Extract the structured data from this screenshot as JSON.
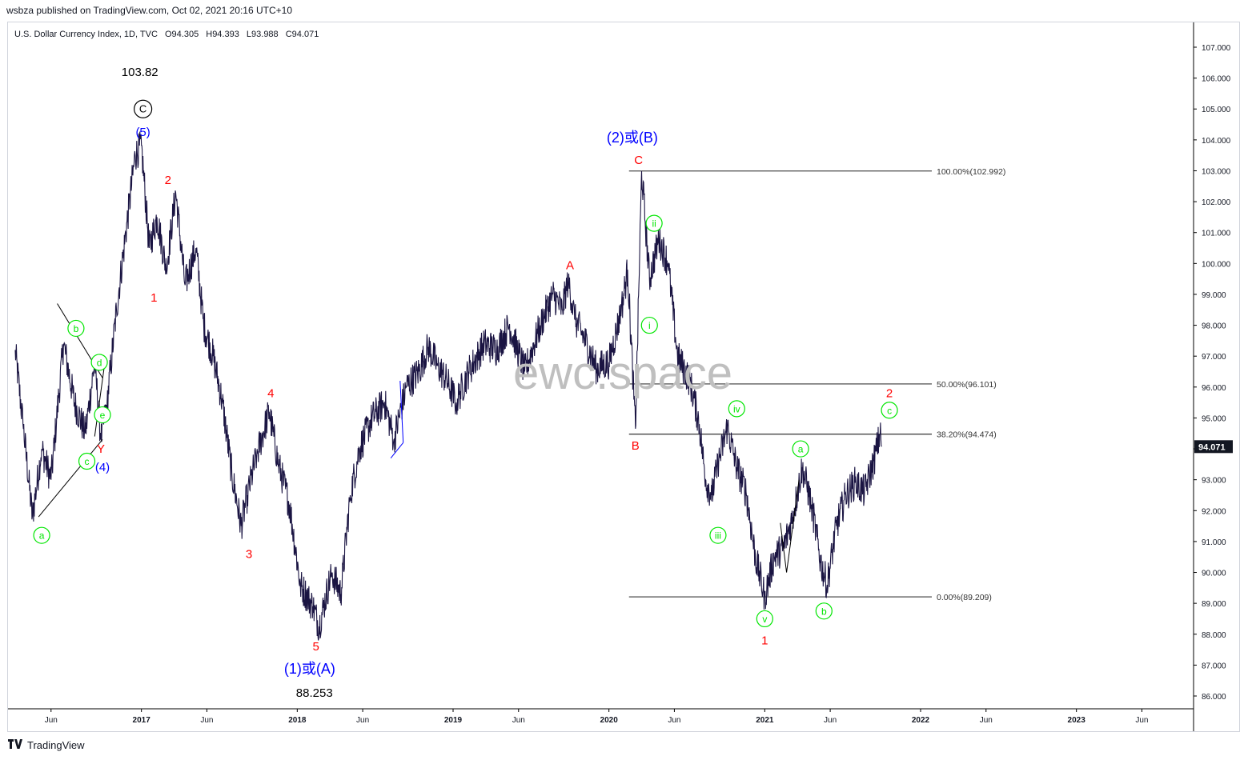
{
  "publisher_line": "wsbza published on TradingView.com, Oct 02, 2021 20:16 UTC+10",
  "footer": {
    "logo_icon": "tradingview-logo-icon",
    "brand": "TradingView"
  },
  "watermark": "ewc.space",
  "colors": {
    "price": "#1a1442",
    "wave_red": "#ff0000",
    "wave_blue": "#0000ff",
    "wave_green": "#00e600",
    "fib_line": "#000000",
    "watermark": "#bfbfbf"
  },
  "chart_data": {
    "type": "line",
    "title": "U.S. Dollar Currency Index, 1D, TVC",
    "ohlc": {
      "open": "O94.305",
      "high": "H94.393",
      "low": "L93.988",
      "close": "C94.071"
    },
    "last_price": "94.071",
    "ylim": [
      85.5,
      107.5
    ],
    "y_ticks": [
      "86.000",
      "87.000",
      "88.000",
      "89.000",
      "90.000",
      "91.000",
      "92.000",
      "93.000",
      "94.000",
      "95.000",
      "96.000",
      "97.000",
      "98.000",
      "99.000",
      "100.000",
      "101.000",
      "102.000",
      "103.000",
      "104.000",
      "105.000",
      "106.000",
      "107.000"
    ],
    "x_ticks": [
      {
        "label": "Jun",
        "t": 2016.42
      },
      {
        "label": "2017",
        "t": 2017.0
      },
      {
        "label": "Jun",
        "t": 2017.42
      },
      {
        "label": "2018",
        "t": 2018.0
      },
      {
        "label": "Jun",
        "t": 2018.42
      },
      {
        "label": "2019",
        "t": 2019.0
      },
      {
        "label": "Jun",
        "t": 2019.42
      },
      {
        "label": "2020",
        "t": 2020.0
      },
      {
        "label": "Jun",
        "t": 2020.42
      },
      {
        "label": "2021",
        "t": 2021.0
      },
      {
        "label": "Jun",
        "t": 2021.42
      },
      {
        "label": "2022",
        "t": 2022.0
      },
      {
        "label": "Jun",
        "t": 2022.42
      },
      {
        "label": "2023",
        "t": 2023.0
      },
      {
        "label": "Jun",
        "t": 2023.42
      }
    ],
    "series": [
      {
        "points": [
          [
            2016.19,
            97.2
          ],
          [
            2016.24,
            94.8
          ],
          [
            2016.3,
            91.8
          ],
          [
            2016.36,
            94.0
          ],
          [
            2016.42,
            93.0
          ],
          [
            2016.5,
            97.4
          ],
          [
            2016.57,
            95.5
          ],
          [
            2016.64,
            94.5
          ],
          [
            2016.7,
            96.8
          ],
          [
            2016.74,
            94.3
          ],
          [
            2016.78,
            95.5
          ],
          [
            2016.84,
            98.5
          ],
          [
            2016.9,
            101.0
          ],
          [
            2016.96,
            103.5
          ],
          [
            2017.0,
            103.82
          ],
          [
            2017.05,
            100.5
          ],
          [
            2017.1,
            101.5
          ],
          [
            2017.16,
            99.8
          ],
          [
            2017.22,
            102.3
          ],
          [
            2017.28,
            99.3
          ],
          [
            2017.35,
            100.5
          ],
          [
            2017.4,
            98.0
          ],
          [
            2017.46,
            97.0
          ],
          [
            2017.52,
            95.5
          ],
          [
            2017.58,
            93.2
          ],
          [
            2017.64,
            91.5
          ],
          [
            2017.68,
            92.5
          ],
          [
            2017.74,
            93.8
          ],
          [
            2017.82,
            95.2
          ],
          [
            2017.88,
            93.5
          ],
          [
            2017.95,
            92.2
          ],
          [
            2018.02,
            89.6
          ],
          [
            2018.1,
            88.9
          ],
          [
            2018.14,
            88.253
          ],
          [
            2018.22,
            90.0
          ],
          [
            2018.28,
            89.3
          ],
          [
            2018.34,
            92.5
          ],
          [
            2018.4,
            94.0
          ],
          [
            2018.48,
            95.0
          ],
          [
            2018.56,
            95.5
          ],
          [
            2018.62,
            94.3
          ],
          [
            2018.7,
            96.0
          ],
          [
            2018.78,
            96.5
          ],
          [
            2018.84,
            97.3
          ],
          [
            2018.9,
            96.7
          ],
          [
            2018.96,
            96.2
          ],
          [
            2019.02,
            95.5
          ],
          [
            2019.1,
            96.5
          ],
          [
            2019.2,
            97.4
          ],
          [
            2019.28,
            97.2
          ],
          [
            2019.36,
            98.0
          ],
          [
            2019.46,
            96.5
          ],
          [
            2019.56,
            98.0
          ],
          [
            2019.64,
            99.0
          ],
          [
            2019.7,
            98.5
          ],
          [
            2019.74,
            99.5
          ],
          [
            2019.78,
            98.2
          ],
          [
            2019.84,
            97.6
          ],
          [
            2019.92,
            96.6
          ],
          [
            2020.0,
            96.8
          ],
          [
            2020.08,
            98.5
          ],
          [
            2020.12,
            99.8
          ],
          [
            2020.17,
            94.65
          ],
          [
            2020.21,
            102.992
          ],
          [
            2020.26,
            99.5
          ],
          [
            2020.32,
            100.8
          ],
          [
            2020.38,
            100.0
          ],
          [
            2020.44,
            97.0
          ],
          [
            2020.52,
            96.2
          ],
          [
            2020.58,
            94.8
          ],
          [
            2020.62,
            93.0
          ],
          [
            2020.66,
            92.5
          ],
          [
            2020.7,
            93.5
          ],
          [
            2020.76,
            94.7
          ],
          [
            2020.82,
            93.4
          ],
          [
            2020.88,
            92.6
          ],
          [
            2020.94,
            90.5
          ],
          [
            2021.0,
            89.209
          ],
          [
            2021.06,
            90.5
          ],
          [
            2021.12,
            90.8
          ],
          [
            2021.18,
            91.8
          ],
          [
            2021.24,
            93.4
          ],
          [
            2021.3,
            92.2
          ],
          [
            2021.36,
            90.3
          ],
          [
            2021.4,
            89.6
          ],
          [
            2021.46,
            91.5
          ],
          [
            2021.52,
            92.5
          ],
          [
            2021.58,
            92.9
          ],
          [
            2021.64,
            92.6
          ],
          [
            2021.7,
            93.6
          ],
          [
            2021.74,
            94.474
          ],
          [
            2021.75,
            94.071
          ]
        ]
      }
    ],
    "fibonacci": {
      "t_start": 2020.17,
      "t_end": 2021.05,
      "levels": [
        {
          "value": 102.992,
          "label": "100.00%(102.992)"
        },
        {
          "value": 96.101,
          "label": "50.00%(96.101)"
        },
        {
          "value": 94.474,
          "label": "38.20%(94.474)"
        },
        {
          "value": 89.209,
          "label": "0.00%(89.209)"
        }
      ]
    },
    "annotations": [
      {
        "text": "103.82",
        "t": 2016.99,
        "v": 106.2,
        "color": "#000000",
        "style": "plain",
        "size": 15
      },
      {
        "text": "C",
        "t": 2017.01,
        "v": 105.0,
        "color": "#000000",
        "style": "circle",
        "size": 13
      },
      {
        "text": "(5)",
        "t": 2017.01,
        "v": 104.25,
        "color": "#0000ff",
        "style": "plain",
        "size": 15
      },
      {
        "text": "2",
        "t": 2017.17,
        "v": 102.7,
        "color": "#ff0000",
        "style": "plain",
        "size": 15
      },
      {
        "text": "1",
        "t": 2017.08,
        "v": 98.9,
        "color": "#ff0000",
        "style": "plain",
        "size": 15
      },
      {
        "text": "b",
        "t": 2016.58,
        "v": 97.9,
        "color": "#00e600",
        "style": "circle",
        "size": 12
      },
      {
        "text": "d",
        "t": 2016.73,
        "v": 96.8,
        "color": "#00e600",
        "style": "circle",
        "size": 12
      },
      {
        "text": "e",
        "t": 2016.75,
        "v": 95.1,
        "color": "#00e600",
        "style": "circle",
        "size": 12
      },
      {
        "text": "Y",
        "t": 2016.74,
        "v": 94.0,
        "color": "#ff0000",
        "style": "plain",
        "size": 15
      },
      {
        "text": "c",
        "t": 2016.65,
        "v": 93.6,
        "color": "#00e600",
        "style": "circle",
        "size": 12
      },
      {
        "text": "(4)",
        "t": 2016.75,
        "v": 93.4,
        "color": "#0000ff",
        "style": "plain",
        "size": 15
      },
      {
        "text": "a",
        "t": 2016.36,
        "v": 91.2,
        "color": "#00e600",
        "style": "circle",
        "size": 12
      },
      {
        "text": "4",
        "t": 2017.83,
        "v": 95.8,
        "color": "#ff0000",
        "style": "plain",
        "size": 15
      },
      {
        "text": "3",
        "t": 2017.69,
        "v": 90.6,
        "color": "#ff0000",
        "style": "plain",
        "size": 15
      },
      {
        "text": "5",
        "t": 2018.12,
        "v": 87.6,
        "color": "#ff0000",
        "style": "plain",
        "size": 15
      },
      {
        "text": "(1)或(A)",
        "t": 2018.08,
        "v": 86.85,
        "color": "#0000ff",
        "style": "plain",
        "size": 18
      },
      {
        "text": "88.253",
        "t": 2018.11,
        "v": 86.1,
        "color": "#000000",
        "style": "plain",
        "size": 15
      },
      {
        "text": "A",
        "t": 2019.75,
        "v": 99.95,
        "color": "#ff0000",
        "style": "plain",
        "size": 15
      },
      {
        "text": "(2)或(B)",
        "t": 2020.15,
        "v": 104.05,
        "color": "#0000ff",
        "style": "plain",
        "size": 18
      },
      {
        "text": "C",
        "t": 2020.19,
        "v": 103.35,
        "color": "#ff0000",
        "style": "plain",
        "size": 15
      },
      {
        "text": "ii",
        "t": 2020.29,
        "v": 101.3,
        "color": "#00e600",
        "style": "circle",
        "size": 12
      },
      {
        "text": "i",
        "t": 2020.26,
        "v": 98.0,
        "color": "#00e600",
        "style": "circle",
        "size": 12
      },
      {
        "text": "B",
        "t": 2020.17,
        "v": 94.1,
        "color": "#ff0000",
        "style": "plain",
        "size": 15
      },
      {
        "text": "iv",
        "t": 2020.82,
        "v": 95.3,
        "color": "#00e600",
        "style": "circle",
        "size": 12
      },
      {
        "text": "iii",
        "t": 2020.7,
        "v": 91.2,
        "color": "#00e600",
        "style": "circle",
        "size": 12
      },
      {
        "text": "v",
        "t": 2021.0,
        "v": 88.5,
        "color": "#00e600",
        "style": "circle",
        "size": 12
      },
      {
        "text": "1",
        "t": 2021.0,
        "v": 87.8,
        "color": "#ff0000",
        "style": "plain",
        "size": 15
      },
      {
        "text": "a",
        "t": 2021.23,
        "v": 94.0,
        "color": "#00e600",
        "style": "circle",
        "size": 12
      },
      {
        "text": "b",
        "t": 2021.38,
        "v": 88.75,
        "color": "#00e600",
        "style": "circle",
        "size": 12
      },
      {
        "text": "2",
        "t": 2021.8,
        "v": 95.8,
        "color": "#ff0000",
        "style": "plain",
        "size": 15
      },
      {
        "text": "c",
        "t": 2021.8,
        "v": 95.25,
        "color": "#00e600",
        "style": "circle",
        "size": 12
      }
    ],
    "trendlines": [
      {
        "t1": 2016.34,
        "v1": 91.8,
        "t2": 2016.75,
        "v2": 94.3
      },
      {
        "t1": 2016.46,
        "v1": 98.7,
        "t2": 2016.75,
        "v2": 96.3
      },
      {
        "t1": 2016.7,
        "v1": 94.4,
        "t2": 2016.76,
        "v2": 96.6
      },
      {
        "t1": 2018.6,
        "v1": 93.7,
        "t2": 2018.68,
        "v2": 94.2
      },
      {
        "t1": 2018.68,
        "v1": 94.2,
        "t2": 2018.66,
        "v2": 96.2
      },
      {
        "t1": 2021.1,
        "v1": 91.6,
        "t2": 2021.14,
        "v2": 90.0
      },
      {
        "t1": 2021.14,
        "v1": 90.0,
        "t2": 2021.22,
        "v2": 93.0
      }
    ]
  }
}
